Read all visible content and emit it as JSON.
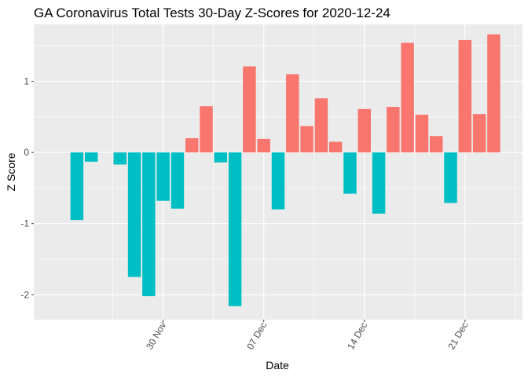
{
  "chart_data": {
    "type": "bar",
    "title": "GA Coronavirus Total Tests 30-Day Z-Scores for 2020-12-24",
    "xlabel": "Date",
    "ylabel": "Z Score",
    "x_axis_kind": "date",
    "xlim": [
      "2020-11-21",
      "2020-12-25"
    ],
    "ylim": [
      -2.35,
      1.8
    ],
    "y_ticks": [
      -2,
      -1,
      0,
      1
    ],
    "x_ticks": [
      {
        "date": "2020-11-30",
        "label": "30 Nov"
      },
      {
        "date": "2020-12-07",
        "label": "07 Dec"
      },
      {
        "date": "2020-12-14",
        "label": "14 Dec"
      },
      {
        "date": "2020-12-21",
        "label": "21 Dec"
      }
    ],
    "grid": true,
    "legend": "none",
    "colors": {
      "positive": "#F8766D",
      "negative": "#00BFC4",
      "panel": "#EBEBEB",
      "grid": "#FFFFFF"
    },
    "dates": [
      "2020-11-24",
      "2020-11-25",
      "2020-11-26",
      "2020-11-27",
      "2020-11-28",
      "2020-11-29",
      "2020-11-30",
      "2020-12-01",
      "2020-12-02",
      "2020-12-03",
      "2020-12-04",
      "2020-12-05",
      "2020-12-06",
      "2020-12-07",
      "2020-12-08",
      "2020-12-09",
      "2020-12-10",
      "2020-12-11",
      "2020-12-12",
      "2020-12-13",
      "2020-12-14",
      "2020-12-15",
      "2020-12-16",
      "2020-12-17",
      "2020-12-18",
      "2020-12-19",
      "2020-12-20",
      "2020-12-21",
      "2020-12-22",
      "2020-12-23",
      "2020-12-24"
    ],
    "values": [
      -0.95,
      -0.13,
      null,
      -0.17,
      -1.75,
      -2.02,
      -0.68,
      -0.79,
      0.2,
      0.65,
      -0.14,
      -2.16,
      1.21,
      0.19,
      -0.8,
      1.1,
      0.37,
      0.76,
      0.15,
      -0.58,
      0.61,
      -0.86,
      0.64,
      1.54,
      0.53,
      0.23,
      -0.71,
      1.58,
      0.54,
      1.66,
      null
    ]
  }
}
